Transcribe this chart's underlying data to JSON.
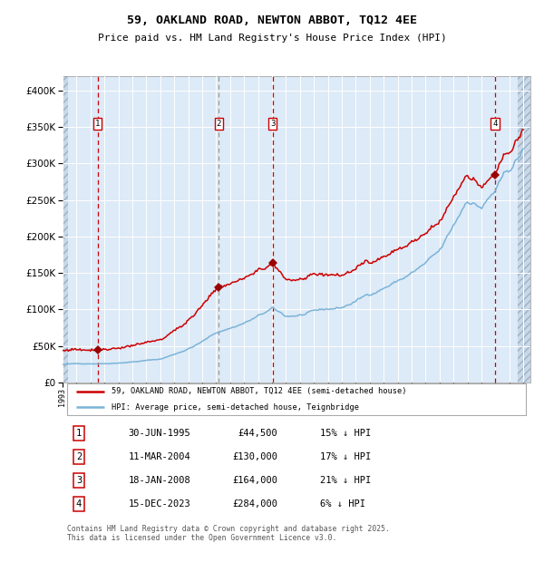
{
  "title": "59, OAKLAND ROAD, NEWTON ABBOT, TQ12 4EE",
  "subtitle": "Price paid vs. HM Land Registry's House Price Index (HPI)",
  "legend_line1": "59, OAKLAND ROAD, NEWTON ABBOT, TQ12 4EE (semi-detached house)",
  "legend_line2": "HPI: Average price, semi-detached house, Teignbridge",
  "footer": "Contains HM Land Registry data © Crown copyright and database right 2025.\nThis data is licensed under the Open Government Licence v3.0.",
  "hpi_color": "#7ab4d8",
  "price_color": "#cc0000",
  "bg_color": "#ddeaf7",
  "grid_color": "#ffffff",
  "sale_marker_color": "#990000",
  "vline_color": "#cc0000",
  "ylim": [
    0,
    420000
  ],
  "yticks": [
    0,
    50000,
    100000,
    150000,
    200000,
    250000,
    300000,
    350000,
    400000
  ],
  "xmin": 1993.0,
  "xmax": 2026.5,
  "sales": [
    {
      "num": 1,
      "date": "30-JUN-1995",
      "year": 1995.5,
      "price": 44500,
      "pct": "15%"
    },
    {
      "num": 2,
      "date": "11-MAR-2004",
      "year": 2004.19,
      "price": 130000,
      "pct": "17%"
    },
    {
      "num": 3,
      "date": "18-JAN-2008",
      "year": 2008.05,
      "price": 164000,
      "pct": "21%"
    },
    {
      "num": 4,
      "date": "15-DEC-2023",
      "year": 2023.96,
      "price": 284000,
      "pct": "6%"
    }
  ],
  "table_rows": [
    [
      "1",
      "30-JUN-1995",
      "£44,500",
      "15% ↓ HPI"
    ],
    [
      "2",
      "11-MAR-2004",
      "£130,000",
      "17% ↓ HPI"
    ],
    [
      "3",
      "18-JAN-2008",
      "£164,000",
      "21% ↓ HPI"
    ],
    [
      "4",
      "15-DEC-2023",
      "£284,000",
      "6% ↓ HPI"
    ]
  ]
}
